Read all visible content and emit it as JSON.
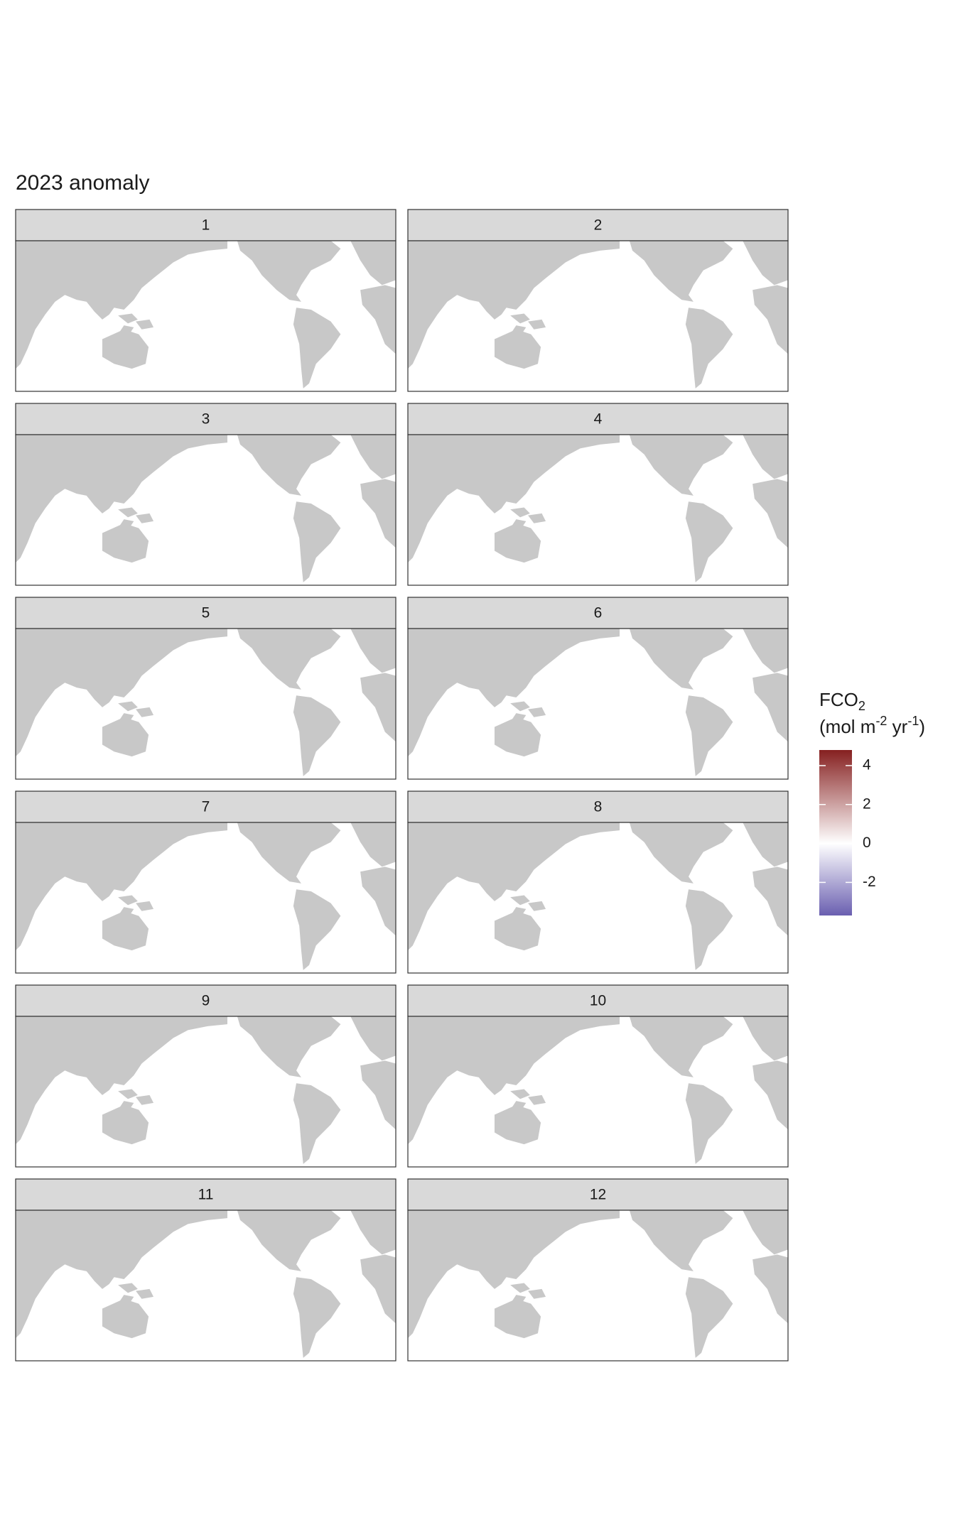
{
  "chart_data": {
    "type": "map",
    "title": "2023 anomaly",
    "panels": [
      "1",
      "2",
      "3",
      "4",
      "5",
      "6",
      "7",
      "8",
      "9",
      "10",
      "11",
      "12"
    ],
    "legend": {
      "title": "FCO",
      "title_sub": "2",
      "unit": [
        "(mol m",
        "-2",
        " yr",
        "-1",
        ")"
      ],
      "colors": {
        "low": "#6a5fb0",
        "mid": "#ffffff",
        "high": "#862020"
      },
      "limits": [
        -3.7,
        4.8
      ],
      "ticks": [
        -2,
        0,
        2,
        4
      ]
    }
  }
}
